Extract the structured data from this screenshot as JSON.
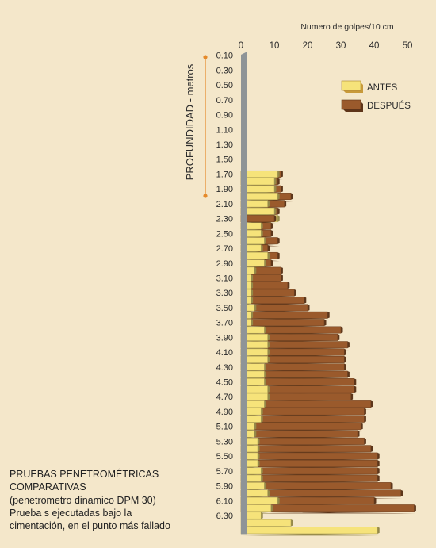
{
  "chart_data": {
    "type": "bar",
    "orientation": "horizontal",
    "title": "Numero de golpes/10 cm",
    "ylabel": "PROFUNDIDAD - metros",
    "xlim": [
      0,
      50
    ],
    "x_ticks": [
      "0",
      "10",
      "20",
      "30",
      "40",
      "50"
    ],
    "grid": false,
    "legend_position": "top-right",
    "colors": {
      "antes": "#f6e37a",
      "despues": "#9a5a2c",
      "axis": "#8e9497",
      "marker": "#e58a2a"
    },
    "depth_tick_labels": [
      "0.10",
      "0.30",
      "0.50",
      "0.70",
      "0.90",
      "1.10",
      "1.30",
      "1.50",
      "1.70",
      "1.90",
      "2.10",
      "2.30",
      "2.50",
      "2.70",
      "2.90",
      "3.10",
      "3.30",
      "3.50",
      "3.70",
      "3.90",
      "4.10",
      "4.30",
      "4.50",
      "4.70",
      "4.90",
      "5.10",
      "5.30",
      "5.50",
      "5.70",
      "5.90",
      "6.10",
      "6.30"
    ],
    "depths_start": 0.1,
    "depth_step": 0.1,
    "series": [
      {
        "name": "ANTES",
        "values": [
          0,
          0,
          0,
          0,
          0,
          0,
          0,
          0,
          0,
          0,
          0,
          0,
          0,
          0,
          0,
          0,
          11,
          10,
          10,
          11,
          8,
          10,
          11,
          6,
          6,
          7,
          6,
          8,
          7,
          4,
          3,
          3,
          3,
          3,
          4,
          3,
          3,
          7,
          8,
          8,
          8,
          8,
          7,
          7,
          7,
          8,
          8,
          7,
          6,
          6,
          4,
          4,
          5,
          5,
          5,
          5,
          6,
          6,
          7,
          8,
          11,
          9,
          6,
          15,
          41
        ]
      },
      {
        "name": "DESPUÉS",
        "values": [
          0,
          0,
          0,
          0,
          0,
          0,
          0,
          0,
          0,
          0,
          0,
          0,
          0,
          0,
          0,
          0,
          12,
          11,
          12,
          15,
          13,
          11,
          10,
          9,
          9,
          11,
          8,
          11,
          9,
          12,
          12,
          14,
          16,
          19,
          20,
          26,
          25,
          30,
          29,
          32,
          31,
          31,
          31,
          32,
          34,
          34,
          33,
          39,
          37,
          37,
          36,
          35,
          37,
          39,
          41,
          41,
          41,
          41,
          45,
          48,
          40,
          52,
          0,
          0,
          0
        ]
      }
    ]
  },
  "caption": {
    "lines": [
      "PRUEBAS PENETROMÉTRICAS",
      "COMPARATIVAS",
      "(penetrometro dinamico DPM 30)",
      "Prueba s ejecutadas bajo la",
      "cimentación, en el punto más fallado"
    ]
  }
}
